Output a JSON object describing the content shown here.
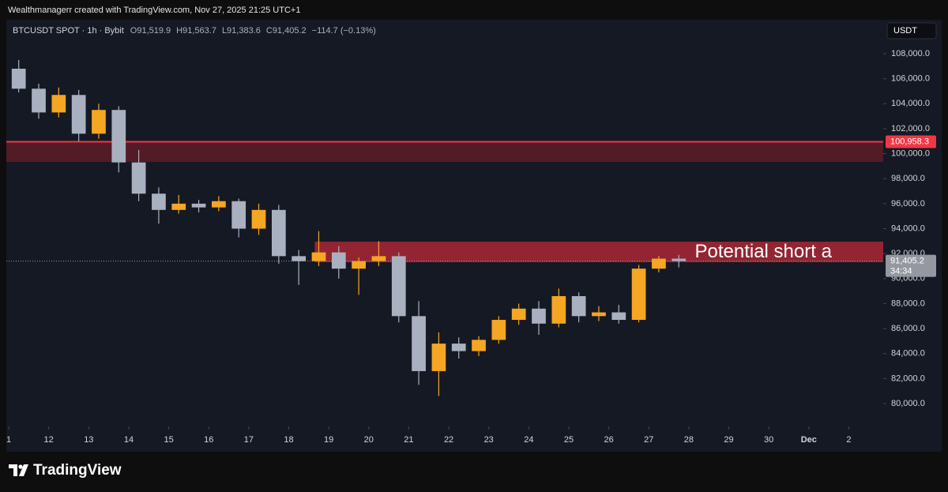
{
  "header": {
    "credit": "Wealthmanagerr created with TradingView.com, Nov 27, 2025 21:25 UTC+1",
    "logo": "TradingView"
  },
  "chart_data": {
    "type": "candlestick",
    "symbol": "BTCUSDT SPOT · 1h · Bybit",
    "ohlc": [
      "O91,519.9",
      "H91,563.7",
      "L91,383.6",
      "C91,405.2"
    ],
    "change": "−114.7 (−0.13%)",
    "currency": "USDT",
    "up_color": "#f5a623",
    "down_color": "#a9b0c0",
    "x": [
      11,
      11.5,
      12,
      12.5,
      13,
      13.5,
      14,
      14.5,
      15,
      15.5,
      16,
      16.5,
      17,
      17.5,
      18,
      18.5,
      19,
      19.5,
      20,
      20.5,
      21,
      21.5,
      22,
      22.5,
      23,
      23.5,
      24,
      24.5,
      25,
      25.5,
      26,
      26.5,
      27,
      27.5
    ],
    "open": [
      106800,
      105200,
      103300,
      104700,
      101600,
      103500,
      99300,
      96800,
      95500,
      96000,
      95700,
      96200,
      94000,
      95500,
      91800,
      91400,
      92100,
      90800,
      91400,
      91800,
      87000,
      82600,
      84800,
      84200,
      85100,
      86700,
      87600,
      86400,
      88600,
      87000,
      87300,
      86700,
      90800,
      91600
    ],
    "high": [
      107500,
      105600,
      105300,
      105100,
      104000,
      103800,
      100300,
      97300,
      96700,
      96300,
      96600,
      96400,
      96000,
      95900,
      92300,
      93800,
      92600,
      91700,
      93000,
      92100,
      88200,
      85700,
      85300,
      85400,
      87000,
      88000,
      88200,
      89200,
      88900,
      87800,
      87900,
      91100,
      91800,
      91900
    ],
    "low": [
      104900,
      102800,
      102900,
      101000,
      101200,
      98500,
      96200,
      94400,
      95200,
      95300,
      95400,
      93300,
      93500,
      91200,
      89500,
      91000,
      90000,
      88700,
      91000,
      86500,
      81500,
      80600,
      83600,
      83800,
      84800,
      86300,
      85500,
      86100,
      86500,
      86600,
      86400,
      86500,
      90500,
      90900
    ],
    "close": [
      105200,
      103300,
      104700,
      101600,
      103500,
      99300,
      96800,
      95500,
      96000,
      95700,
      96200,
      94000,
      95500,
      91800,
      91400,
      92100,
      90800,
      91400,
      91800,
      87000,
      82600,
      84800,
      84200,
      85100,
      86700,
      87600,
      86400,
      88600,
      87000,
      87300,
      86700,
      90800,
      91600,
      91405.2
    ],
    "xlim": [
      10.94,
      32.86
    ],
    "ylim": [
      78170,
      110720
    ],
    "xticks": [
      {
        "value": 11,
        "label": "1"
      },
      12,
      13,
      14,
      15,
      16,
      17,
      18,
      19,
      20,
      21,
      22,
      23,
      24,
      25,
      26,
      27,
      28,
      29,
      30,
      {
        "value": 31,
        "label": "Dec"
      },
      {
        "value": 32,
        "label": "2"
      }
    ],
    "yticks": [
      {
        "value": 80000,
        "label": "80,000.0"
      },
      {
        "value": 82000,
        "label": "82,000.0"
      },
      {
        "value": 84000,
        "label": "84,000.0"
      },
      {
        "value": 86000,
        "label": "86,000.0"
      },
      {
        "value": 88000,
        "label": "88,000.0"
      },
      {
        "value": 90000,
        "label": "90,000.0"
      },
      {
        "value": 92000,
        "label": "92,000.0"
      },
      {
        "value": 94000,
        "label": "94,000.0"
      },
      {
        "value": 96000,
        "label": "96,000.0"
      },
      {
        "value": 98000,
        "label": "98,000.0"
      },
      {
        "value": 100000,
        "label": "100,000.0"
      },
      {
        "value": 102000,
        "label": "102,000.0"
      },
      {
        "value": 104000,
        "label": "104,000.0"
      },
      {
        "value": 106000,
        "label": "106,000.0"
      },
      {
        "value": 108000,
        "label": "108,000.0"
      }
    ],
    "zones": [
      {
        "top": 100958.3,
        "bottom": 99340,
        "color": "#5a1c26"
      },
      {
        "top": 92956,
        "bottom": 91313,
        "from": 18.65,
        "color": "#a12734"
      }
    ],
    "price_line": {
      "value": 100958.3,
      "label": "100,958.3",
      "color": "#f23645"
    },
    "last_price": {
      "value": 91405.2,
      "label": "91,405.2",
      "countdown": "34:34"
    },
    "annotation": {
      "text": "Potential short a",
      "x": 28.15,
      "y": 92100
    }
  }
}
